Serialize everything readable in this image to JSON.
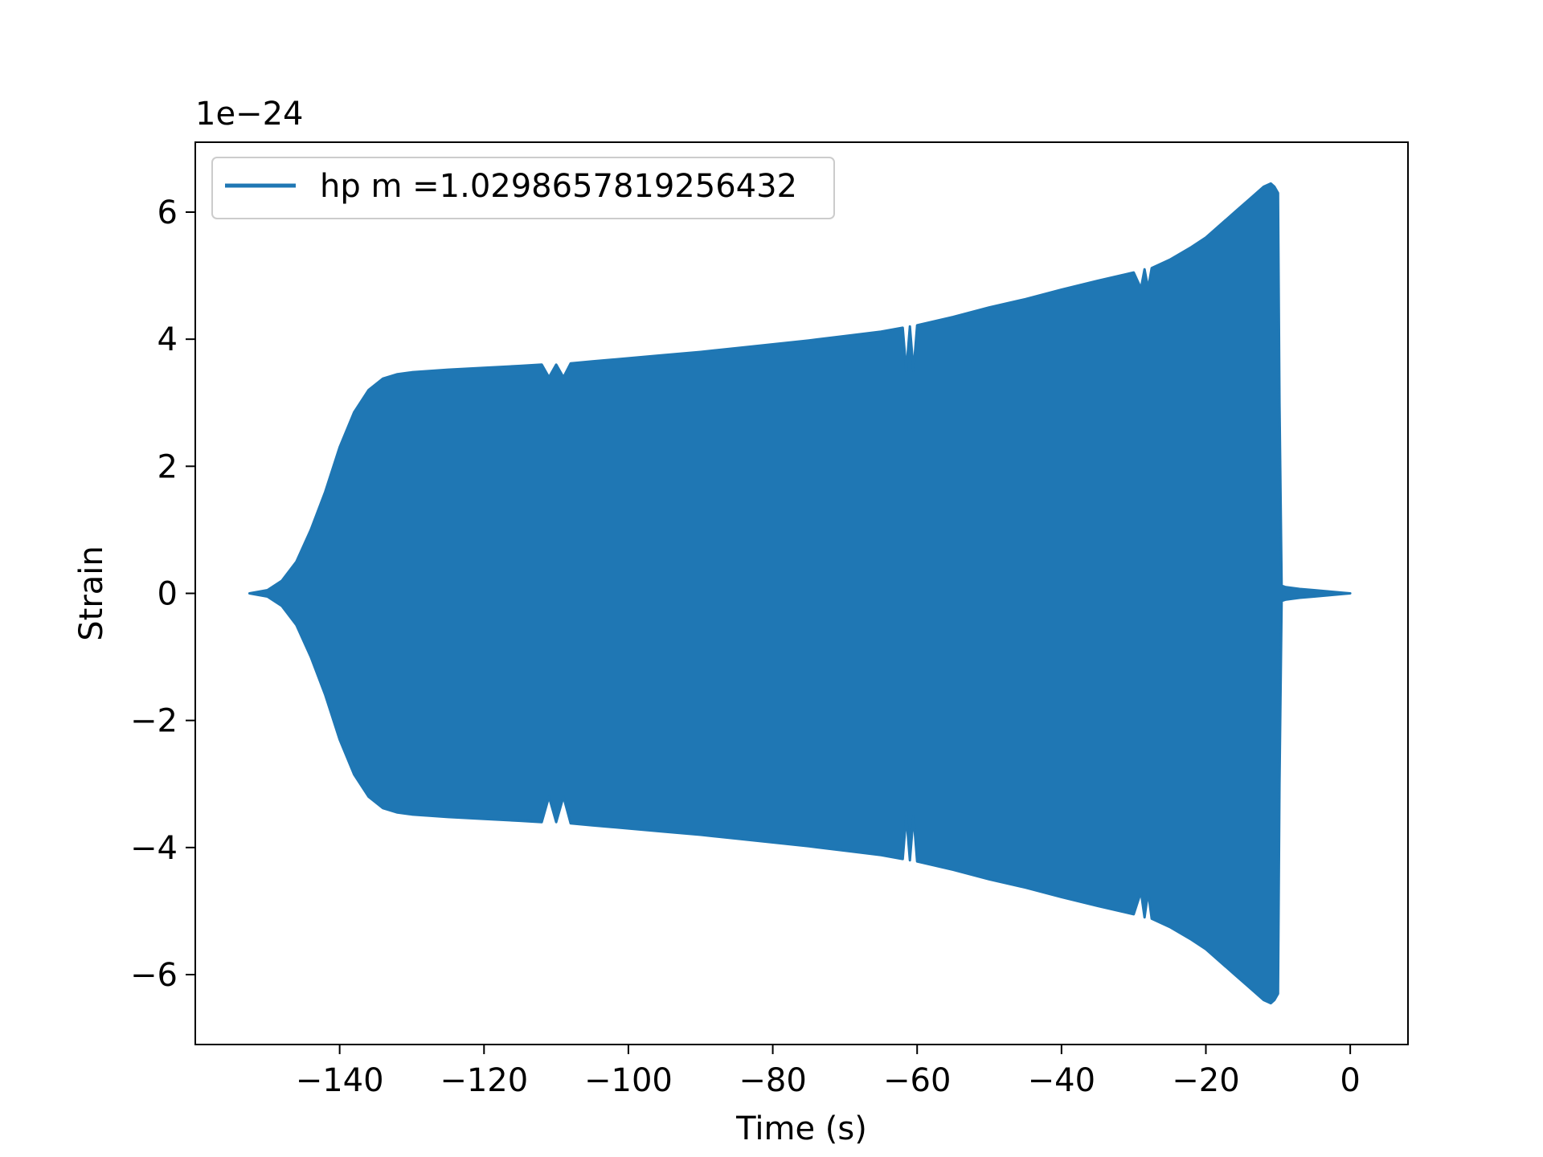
{
  "chart_data": {
    "type": "area",
    "title": "",
    "xlabel": "Time (s)",
    "ylabel": "Strain",
    "offset_text": "1e−24",
    "y_scale_factor": 1e-24,
    "xlim": [
      -160,
      8
    ],
    "ylim": [
      -7.1,
      7.1
    ],
    "xticks": [
      -140,
      -120,
      -100,
      -80,
      -60,
      -40,
      -20,
      0
    ],
    "xtick_labels": [
      "−140",
      "−120",
      "−100",
      "−80",
      "−60",
      "−40",
      "−20",
      "0"
    ],
    "yticks": [
      -6,
      -4,
      -2,
      0,
      2,
      4,
      6
    ],
    "ytick_labels": [
      "−6",
      "−4",
      "−2",
      "0",
      "2",
      "4",
      "6"
    ],
    "grid": false,
    "legend_position": "top-left",
    "series": [
      {
        "name": "hp m =1.0298657819256432",
        "color": "#1f77b4",
        "description_of_mark": "filled oscillation envelope",
        "x": [
          -152.5,
          -150,
          -148,
          -146,
          -144,
          -142,
          -140,
          -138,
          -136,
          -134,
          -132,
          -130,
          -125,
          -120,
          -115,
          -112,
          -111,
          -110,
          -109,
          -108,
          -105,
          -100,
          -95,
          -90,
          -85,
          -80,
          -75,
          -70,
          -65,
          -62,
          -61.5,
          -61,
          -60.5,
          -60,
          -55,
          -50,
          -45,
          -40,
          -35,
          -30,
          -29,
          -28.5,
          -28,
          -27.5,
          -25,
          -22,
          -20,
          -18,
          -16,
          -14,
          -12,
          -11,
          -10.5,
          -10,
          -9.8,
          -9.5,
          -9,
          -7,
          -5,
          -3,
          -1,
          0
        ],
        "upper": [
          0.0,
          0.05,
          0.2,
          0.5,
          1.0,
          1.6,
          2.3,
          2.85,
          3.2,
          3.38,
          3.45,
          3.48,
          3.52,
          3.55,
          3.58,
          3.6,
          3.4,
          3.6,
          3.4,
          3.62,
          3.65,
          3.7,
          3.75,
          3.8,
          3.86,
          3.92,
          3.98,
          4.05,
          4.12,
          4.18,
          3.5,
          4.2,
          3.5,
          4.22,
          4.35,
          4.5,
          4.63,
          4.78,
          4.92,
          5.05,
          4.8,
          5.1,
          4.8,
          5.12,
          5.25,
          5.45,
          5.6,
          5.8,
          6.0,
          6.2,
          6.4,
          6.45,
          6.4,
          6.3,
          3.0,
          0.12,
          0.1,
          0.07,
          0.05,
          0.03,
          0.01,
          0.0
        ],
        "lower": [
          0.0,
          -0.05,
          -0.2,
          -0.5,
          -1.0,
          -1.6,
          -2.3,
          -2.85,
          -3.2,
          -3.38,
          -3.45,
          -3.48,
          -3.52,
          -3.55,
          -3.58,
          -3.6,
          -3.2,
          -3.6,
          -3.2,
          -3.62,
          -3.65,
          -3.7,
          -3.75,
          -3.8,
          -3.86,
          -3.92,
          -3.98,
          -4.05,
          -4.12,
          -4.18,
          -3.5,
          -4.2,
          -3.5,
          -4.22,
          -4.35,
          -4.5,
          -4.63,
          -4.78,
          -4.92,
          -5.05,
          -4.7,
          -5.1,
          -4.7,
          -5.12,
          -5.25,
          -5.45,
          -5.6,
          -5.8,
          -6.0,
          -6.2,
          -6.4,
          -6.45,
          -6.4,
          -6.3,
          -3.0,
          -0.12,
          -0.1,
          -0.07,
          -0.05,
          -0.03,
          -0.01,
          0.0
        ]
      }
    ]
  }
}
